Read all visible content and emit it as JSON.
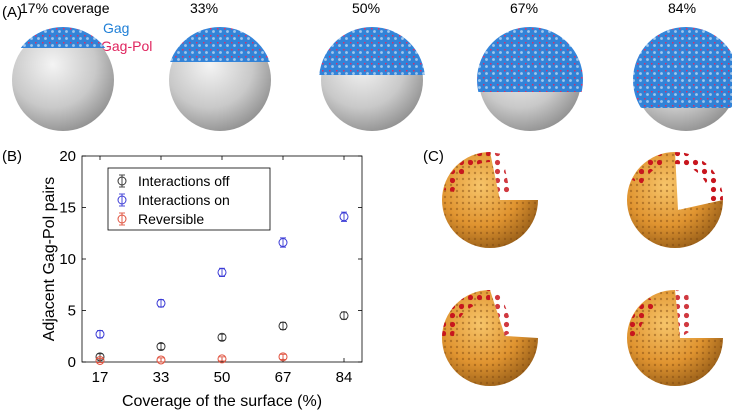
{
  "panels": {
    "a_label": "(A)",
    "b_label": "(B)",
    "c_label": "(C)"
  },
  "panel_a": {
    "coverage_labels": [
      "17% coverage",
      "33%",
      "50%",
      "67%",
      "84%"
    ],
    "coverage_values": [
      17,
      33,
      50,
      67,
      84
    ],
    "legend": {
      "gag": "Gag",
      "gag_pol": "Gag-Pol"
    },
    "colors": {
      "gag": "#1f7fd6",
      "gag_pol": "#e0245e",
      "sphere": "#c8c8c8"
    }
  },
  "panel_c": {
    "colors": {
      "sphere": "#e39a2e",
      "gag_pol": "#c8161e"
    }
  },
  "chart_data": {
    "type": "scatter",
    "xlabel": "Coverage of the surface (%)",
    "ylabel": "Adjacent Gag-Pol pairs",
    "x": [
      17,
      33,
      50,
      67,
      84
    ],
    "xticks": [
      "17",
      "33",
      "50",
      "67",
      "84"
    ],
    "yticks": [
      0,
      5,
      10,
      15,
      20
    ],
    "ylim": [
      0,
      20
    ],
    "legend_position": "top-left",
    "series": [
      {
        "name": "Interactions off",
        "color": "#333333",
        "values": [
          0.5,
          1.5,
          2.4,
          3.5,
          4.5
        ],
        "errors": [
          0.3,
          0.3,
          0.3,
          0.35,
          0.35
        ]
      },
      {
        "name": "Interactions on",
        "color": "#3a3ad6",
        "values": [
          2.7,
          5.7,
          8.7,
          11.6,
          14.1
        ],
        "errors": [
          0.35,
          0.35,
          0.4,
          0.45,
          0.45
        ]
      },
      {
        "name": "Reversible",
        "color": "#e0503c",
        "values": [
          0.15,
          0.2,
          0.3,
          0.5,
          null
        ],
        "errors": [
          0.2,
          0.2,
          0.2,
          0.25,
          0
        ]
      }
    ]
  }
}
